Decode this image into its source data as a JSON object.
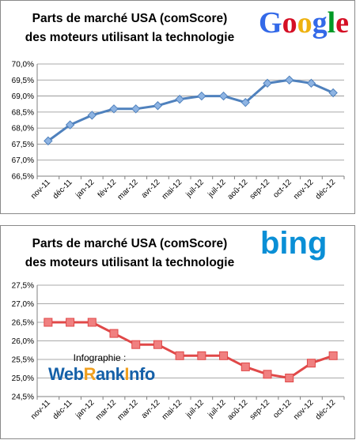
{
  "chart_data": [
    {
      "type": "line",
      "title_lines": [
        "Parts de marché USA (comScore)",
        "des moteurs utilisant la technologie"
      ],
      "logo_text": "Google",
      "logo_colors": [
        "#3369e8",
        "#d50f25",
        "#eeb211",
        "#3369e8",
        "#009925",
        "#d50f25"
      ],
      "categories": [
        "nov-11",
        "déc-11",
        "jan-12",
        "fév-12",
        "mar-12",
        "avr-12",
        "mai-12",
        "juil-12",
        "juil-12",
        "aoû-12",
        "sep-12",
        "oct-12",
        "nov-12",
        "déc-12"
      ],
      "values": [
        67.6,
        68.1,
        68.4,
        68.6,
        68.6,
        68.7,
        68.9,
        69.0,
        69.0,
        68.8,
        69.4,
        69.5,
        69.4,
        69.1
      ],
      "yticks": [
        "66,5%",
        "67,0%",
        "67,5%",
        "68,0%",
        "68,5%",
        "69,0%",
        "69,5%",
        "70,0%"
      ],
      "ylim": [
        66.5,
        70.0
      ],
      "line_color": "#4f81bd",
      "marker_color": "#8eb4e3",
      "grid": true
    },
    {
      "type": "line",
      "title_lines": [
        "Parts de marché USA (comScore)",
        "des moteurs utilisant la technologie"
      ],
      "logo_text": "bing",
      "logo_color": "#0a8fd6",
      "categories": [
        "nov-11",
        "déc-11",
        "jan-12",
        "mar-12",
        "mar-12",
        "avr-12",
        "mai-12",
        "juil-12",
        "juil-12",
        "aoû-12",
        "sep-12",
        "oct-12",
        "nov-12",
        "déc-12"
      ],
      "values": [
        26.5,
        26.5,
        26.5,
        26.2,
        25.9,
        25.9,
        25.6,
        25.6,
        25.6,
        25.3,
        25.1,
        25.0,
        25.4,
        25.6
      ],
      "yticks": [
        "24,5%",
        "25,0%",
        "25,5%",
        "26,0%",
        "26,5%",
        "27,0%",
        "27,5%"
      ],
      "ylim": [
        24.5,
        27.5
      ],
      "line_color": "#e04848",
      "marker_color": "#f08080",
      "grid": true,
      "annotation": {
        "caption": "Infographie :",
        "logo_text": "WebRankInfo",
        "logo_colors": [
          "#1560a8",
          "#f0a020"
        ]
      }
    }
  ]
}
